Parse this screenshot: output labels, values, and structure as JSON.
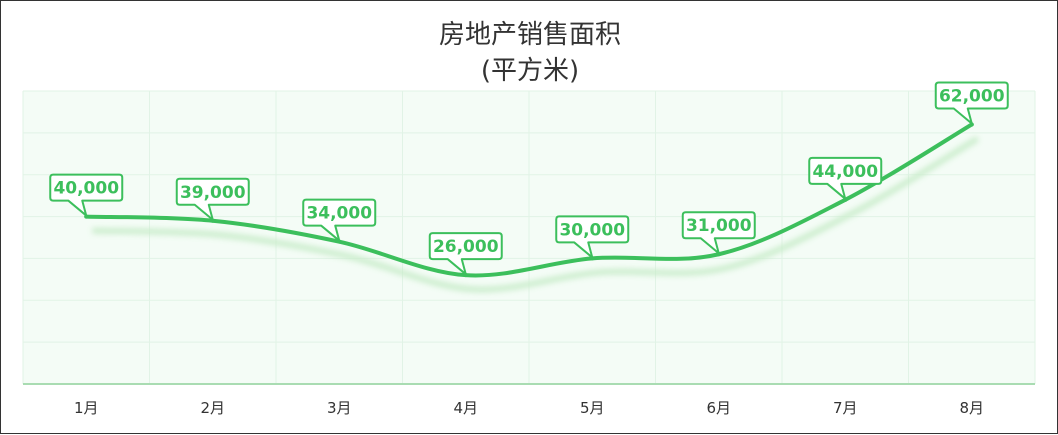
{
  "chart_data": {
    "type": "line",
    "title": "房地产销售面积",
    "subtitle": "(平方米)",
    "categories": [
      "1月",
      "2月",
      "3月",
      "4月",
      "5月",
      "6月",
      "7月",
      "8月"
    ],
    "series": [
      {
        "values": [
          40000,
          39000,
          34000,
          26000,
          30000,
          31000,
          44000,
          62000
        ],
        "labels": [
          "40,000",
          "39,000",
          "34,000",
          "26,000",
          "30,000",
          "31,000",
          "44,000",
          "62,000"
        ]
      }
    ],
    "ylim": [
      0,
      70000
    ],
    "grid": true,
    "smooth": true,
    "colors": {
      "line": "#3cbf5c",
      "shadow": "#c8ecc9",
      "plot_bg": "#f4fcf6",
      "grid": "#e1f3e6",
      "axis": "#a9dcb2",
      "label_bg": "#ffffff"
    }
  }
}
